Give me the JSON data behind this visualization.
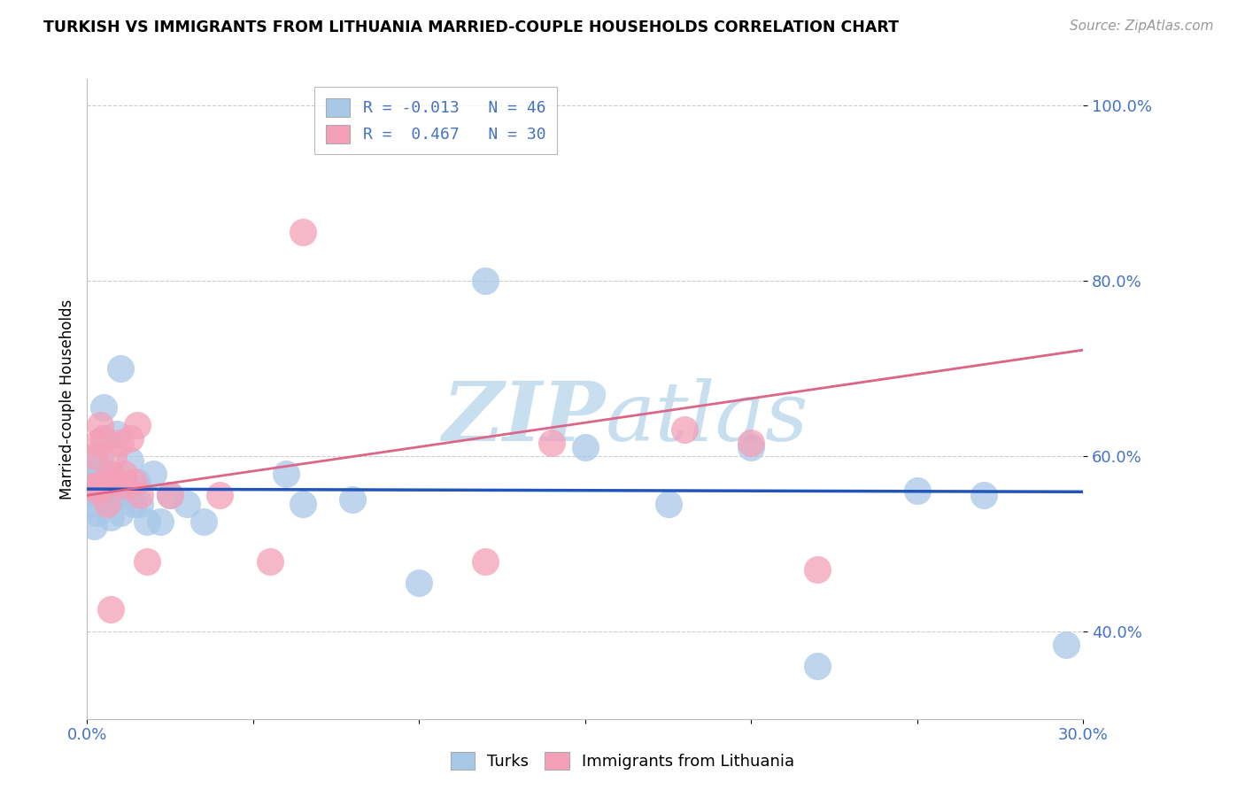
{
  "title": "TURKISH VS IMMIGRANTS FROM LITHUANIA MARRIED-COUPLE HOUSEHOLDS CORRELATION CHART",
  "source": "Source: ZipAtlas.com",
  "ylabel": "Married-couple Households",
  "xmin": 0.0,
  "xmax": 0.3,
  "ymin": 0.3,
  "ymax": 1.03,
  "yticks": [
    0.4,
    0.6,
    0.8,
    1.0
  ],
  "ytick_labels": [
    "40.0%",
    "60.0%",
    "80.0%",
    "100.0%"
  ],
  "legend_r_blue": "-0.013",
  "legend_n_blue": "46",
  "legend_r_pink": "0.467",
  "legend_n_pink": "30",
  "blue_color": "#a8c8e8",
  "pink_color": "#f4a0b8",
  "trendline_blue_color": "#2255bb",
  "trendline_pink_color": "#dd6688",
  "watermark_color": "#c8dff0",
  "turks_x": [
    0.001,
    0.001,
    0.002,
    0.002,
    0.002,
    0.003,
    0.003,
    0.003,
    0.004,
    0.004,
    0.004,
    0.005,
    0.005,
    0.005,
    0.006,
    0.006,
    0.007,
    0.007,
    0.008,
    0.009,
    0.01,
    0.01,
    0.011,
    0.012,
    0.013,
    0.014,
    0.015,
    0.016,
    0.018,
    0.02,
    0.022,
    0.025,
    0.03,
    0.035,
    0.06,
    0.065,
    0.08,
    0.1,
    0.12,
    0.15,
    0.175,
    0.2,
    0.22,
    0.25,
    0.27,
    0.295
  ],
  "turks_y": [
    0.545,
    0.565,
    0.52,
    0.555,
    0.58,
    0.535,
    0.565,
    0.59,
    0.555,
    0.575,
    0.6,
    0.62,
    0.655,
    0.565,
    0.58,
    0.55,
    0.53,
    0.55,
    0.565,
    0.625,
    0.7,
    0.535,
    0.56,
    0.555,
    0.595,
    0.545,
    0.57,
    0.545,
    0.525,
    0.58,
    0.525,
    0.555,
    0.545,
    0.525,
    0.58,
    0.545,
    0.55,
    0.455,
    0.8,
    0.61,
    0.545,
    0.61,
    0.36,
    0.56,
    0.555,
    0.385
  ],
  "lith_x": [
    0.001,
    0.002,
    0.003,
    0.003,
    0.004,
    0.004,
    0.005,
    0.005,
    0.006,
    0.007,
    0.007,
    0.008,
    0.009,
    0.01,
    0.011,
    0.012,
    0.013,
    0.014,
    0.015,
    0.016,
    0.018,
    0.025,
    0.04,
    0.055,
    0.065,
    0.12,
    0.14,
    0.18,
    0.2,
    0.22
  ],
  "lith_y": [
    0.565,
    0.6,
    0.56,
    0.615,
    0.635,
    0.565,
    0.62,
    0.57,
    0.545,
    0.58,
    0.425,
    0.6,
    0.57,
    0.615,
    0.58,
    0.565,
    0.62,
    0.57,
    0.635,
    0.555,
    0.48,
    0.555,
    0.555,
    0.48,
    0.855,
    0.48,
    0.615,
    0.63,
    0.615,
    0.47
  ]
}
